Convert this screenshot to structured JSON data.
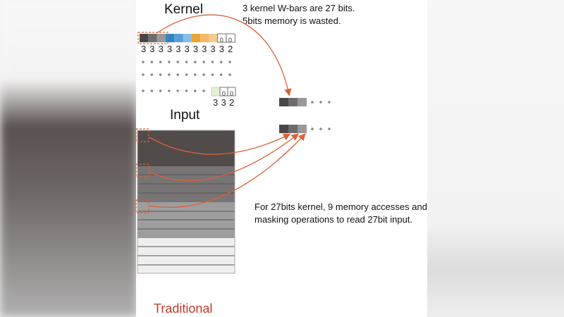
{
  "kernel": {
    "title": "Kernel",
    "bar_colors": [
      "#4a4646",
      "#6e6b6b",
      "#9a9898",
      "#2d86c6",
      "#5a9fd4",
      "#8cbbe4",
      "#eba437",
      "#f0ba66",
      "#f3cc8e",
      "#ffffff",
      "#ffffff"
    ],
    "bit_counts": [
      "3",
      "3",
      "3",
      "3",
      "3",
      "3",
      "3",
      "3",
      "3",
      "3",
      "2"
    ],
    "padding_value": "0",
    "last_row_counts": [
      "3",
      "3",
      "2"
    ],
    "last_row_color": "#e4efd5"
  },
  "input": {
    "title": "Input"
  },
  "notes": {
    "top_line1": "3 kernel W-bars are 27 bits.",
    "top_line2": "5bits memory is wasted.",
    "bottom_line1": "For 27bits kernel, 9 memory accesses and",
    "bottom_line2": "masking operations to read 27bit input."
  },
  "footer": {
    "label": "Traditional",
    "color": "#c0392b"
  },
  "arrow_color": "#d9623a"
}
